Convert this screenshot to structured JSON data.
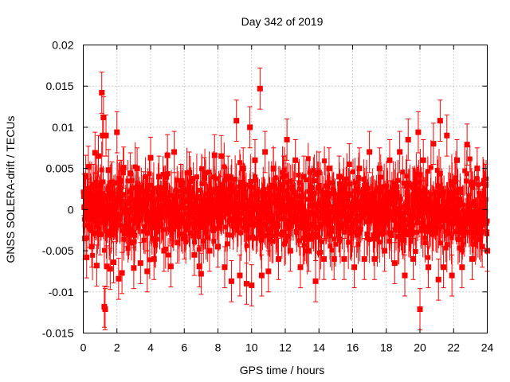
{
  "chart_data": {
    "type": "scatter",
    "title": "Day 342 of 2019",
    "xlabel": "GPS time / hours",
    "ylabel": "GNSS SOLERA-drift / TECUs",
    "xlim": [
      0,
      24
    ],
    "ylim": [
      -0.015,
      0.02
    ],
    "xticks": [
      "0",
      "2",
      "4",
      "6",
      "8",
      "10",
      "12",
      "14",
      "16",
      "18",
      "20",
      "22",
      "24"
    ],
    "yticks": [
      "-0.015",
      "-0.01",
      "-0.005",
      "0",
      "0.005",
      "0.01",
      "0.015",
      "0.02"
    ],
    "grid": true,
    "color": "#ff0000",
    "series": [
      {
        "marker": "square",
        "error_bars": true,
        "typical_error": 0.0025,
        "points": [
          [
            0.05,
            0.0018
          ],
          [
            0.1,
            -0.0035
          ],
          [
            0.15,
            0.0041
          ],
          [
            0.2,
            -0.0058
          ],
          [
            0.25,
            0.0012
          ],
          [
            0.3,
            0.0052
          ],
          [
            0.35,
            -0.0021
          ],
          [
            0.4,
            0.0008
          ],
          [
            0.5,
            -0.0045
          ],
          [
            0.6,
            0.003
          ],
          [
            0.7,
            0.0069
          ],
          [
            0.8,
            -0.0068
          ],
          [
            0.9,
            0.0065
          ],
          [
            1.0,
            -0.003
          ],
          [
            1.1,
            0.0142
          ],
          [
            1.15,
            0.009
          ],
          [
            1.2,
            0.0112
          ],
          [
            1.25,
            -0.0118
          ],
          [
            1.3,
            -0.0121
          ],
          [
            1.35,
            0.009
          ],
          [
            1.4,
            -0.0069
          ],
          [
            1.5,
            0.0048
          ],
          [
            1.6,
            -0.0072
          ],
          [
            1.7,
            0.0033
          ],
          [
            1.8,
            -0.0064
          ],
          [
            2.0,
            0.0094
          ],
          [
            2.1,
            -0.0084
          ],
          [
            2.2,
            0.0035
          ],
          [
            2.3,
            -0.0077
          ],
          [
            2.4,
            0.0051
          ],
          [
            2.6,
            -0.002
          ],
          [
            2.8,
            0.0044
          ],
          [
            3.0,
            -0.0071
          ],
          [
            3.2,
            0.005
          ],
          [
            3.4,
            -0.0065
          ],
          [
            3.6,
            0.0021
          ],
          [
            3.8,
            -0.0075
          ],
          [
            4.0,
            0.0063
          ],
          [
            4.2,
            -0.006
          ],
          [
            4.5,
            0.004
          ],
          [
            4.8,
            -0.005
          ],
          [
            5.0,
            0.0066
          ],
          [
            5.2,
            -0.0069
          ],
          [
            5.4,
            0.007
          ],
          [
            5.6,
            -0.004
          ],
          [
            5.8,
            0.003
          ],
          [
            6.0,
            -0.0035
          ],
          [
            6.3,
            0.0045
          ],
          [
            6.6,
            -0.0055
          ],
          [
            6.9,
            -0.0069
          ],
          [
            7.0,
            -0.0078
          ],
          [
            7.2,
            0.0038
          ],
          [
            7.5,
            -0.005
          ],
          [
            7.8,
            0.0066
          ],
          [
            8.0,
            -0.0045
          ],
          [
            8.2,
            0.0065
          ],
          [
            8.4,
            -0.007
          ],
          [
            8.6,
            0.004
          ],
          [
            8.8,
            -0.0087
          ],
          [
            9.1,
            0.0108
          ],
          [
            9.3,
            -0.008
          ],
          [
            9.5,
            0.005
          ],
          [
            9.7,
            -0.009
          ],
          [
            9.9,
            0.01
          ],
          [
            10.0,
            -0.0092
          ],
          [
            10.2,
            0.006
          ],
          [
            10.5,
            0.0147
          ],
          [
            10.6,
            -0.008
          ],
          [
            10.8,
            0.007
          ],
          [
            11.0,
            -0.0075
          ],
          [
            11.3,
            0.005
          ],
          [
            11.6,
            -0.006
          ],
          [
            11.9,
            0.004
          ],
          [
            12.1,
            0.0085
          ],
          [
            12.3,
            -0.005
          ],
          [
            12.6,
            0.006
          ],
          [
            12.9,
            -0.007
          ],
          [
            13.1,
            0.004
          ],
          [
            13.4,
            -0.005
          ],
          [
            13.8,
            -0.0087
          ],
          [
            14.0,
            0.0045
          ],
          [
            14.3,
            -0.006
          ],
          [
            14.6,
            0.005
          ],
          [
            14.9,
            -0.006
          ],
          [
            15.2,
            0.004
          ],
          [
            15.5,
            -0.006
          ],
          [
            15.8,
            0.0055
          ],
          [
            16.1,
            -0.007
          ],
          [
            16.4,
            0.005
          ],
          [
            16.7,
            -0.006
          ],
          [
            17.0,
            0.007
          ],
          [
            17.3,
            -0.006
          ],
          [
            17.6,
            0.005
          ],
          [
            17.9,
            -0.005
          ],
          [
            18.2,
            0.006
          ],
          [
            18.5,
            -0.0065
          ],
          [
            18.8,
            0.007
          ],
          [
            19.1,
            -0.008
          ],
          [
            19.3,
            0.0085
          ],
          [
            19.6,
            -0.006
          ],
          [
            19.9,
            0.0094
          ],
          [
            20.0,
            -0.0121
          ],
          [
            20.2,
            0.006
          ],
          [
            20.5,
            -0.007
          ],
          [
            20.8,
            0.008
          ],
          [
            21.1,
            -0.0085
          ],
          [
            21.2,
            0.0108
          ],
          [
            21.4,
            -0.007
          ],
          [
            21.6,
            0.009
          ],
          [
            21.9,
            -0.008
          ],
          [
            22.2,
            0.006
          ],
          [
            22.5,
            -0.007
          ],
          [
            22.8,
            0.0079
          ],
          [
            23.1,
            -0.006
          ],
          [
            23.4,
            0.005
          ],
          [
            23.7,
            -0.0045
          ],
          [
            23.9,
            0.003
          ],
          [
            24.0,
            -0.005
          ]
        ]
      }
    ]
  }
}
